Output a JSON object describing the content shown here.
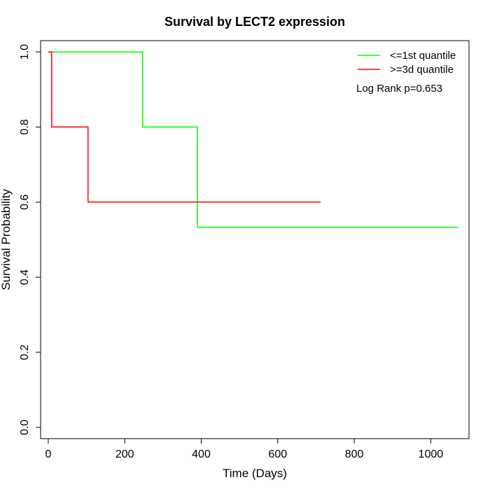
{
  "chart_data": {
    "type": "line",
    "subtype": "kaplan-meier step",
    "title": "Survival by LECT2 expression",
    "xlabel": "Time (Days)",
    "ylabel": "Survival Probability",
    "xlim": [
      -20,
      1100
    ],
    "ylim": [
      -0.03,
      1.03
    ],
    "xticks": [
      0,
      200,
      400,
      600,
      800,
      1000
    ],
    "yticks": [
      0.0,
      0.2,
      0.4,
      0.6,
      0.8,
      1.0
    ],
    "xtick_labels": [
      "0",
      "200",
      "400",
      "600",
      "800",
      "1000"
    ],
    "ytick_labels": [
      "0.0",
      "0.2",
      "0.4",
      "0.6",
      "0.8",
      "1.0"
    ],
    "grid": false,
    "legend_position": "top-right",
    "annotation": "Log Rank p=0.653",
    "series": [
      {
        "name": "<=1st quantile",
        "color": "#00ff00",
        "x": [
          0,
          247,
          247,
          390,
          390,
          1072
        ],
        "y": [
          1.0,
          1.0,
          0.8,
          0.8,
          0.533,
          0.533
        ]
      },
      {
        "name": ">=3d quantile",
        "color": "#ff0000",
        "x": [
          0,
          9,
          9,
          104,
          104,
          712
        ],
        "y": [
          1.0,
          1.0,
          0.8,
          0.8,
          0.6,
          0.6
        ]
      }
    ]
  }
}
